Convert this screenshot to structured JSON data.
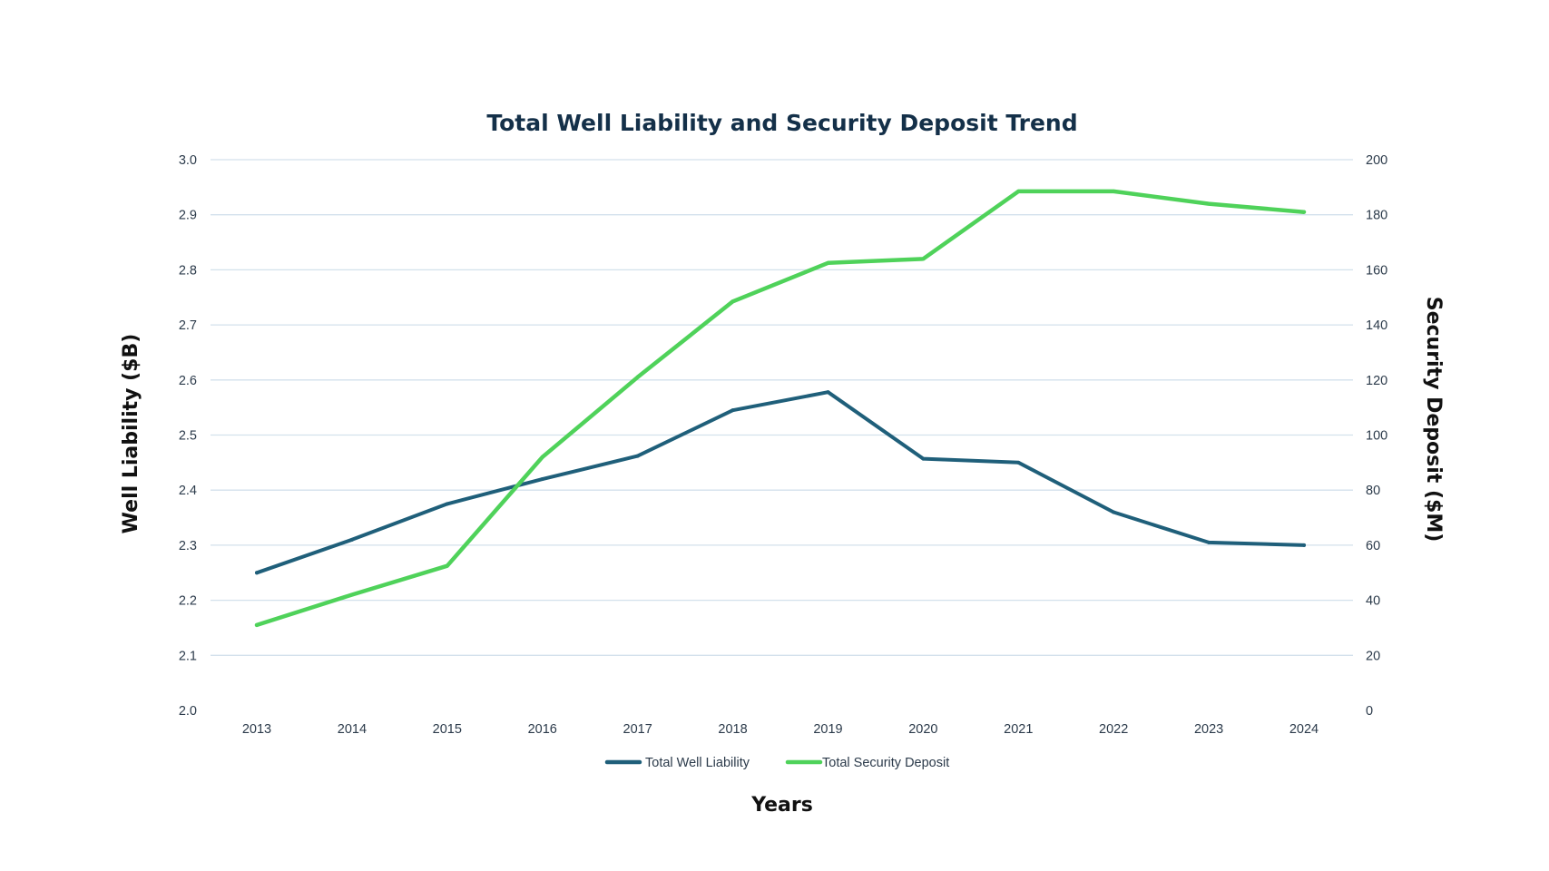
{
  "chart_data": {
    "type": "line",
    "title": "Total Well Liability and Security Deposit Trend",
    "xlabel": "Years",
    "ylabel_left": "Well Liability ($B)",
    "ylabel_right": "Security Deposit ($M)",
    "categories": [
      "2013",
      "2014",
      "2015",
      "2016",
      "2017",
      "2018",
      "2019",
      "2020",
      "2021",
      "2022",
      "2023",
      "2024"
    ],
    "y_left": {
      "lim": [
        2.0,
        3.0
      ],
      "ticks": [
        "2.0",
        "2.1",
        "2.2",
        "2.3",
        "2.4",
        "2.5",
        "2.6",
        "2.7",
        "2.8",
        "2.9",
        "3.0"
      ]
    },
    "y_right": {
      "lim": [
        0,
        200
      ],
      "ticks": [
        "0",
        "20",
        "40",
        "60",
        "80",
        "100",
        "120",
        "140",
        "160",
        "180",
        "200"
      ]
    },
    "series": [
      {
        "name": "Total Well Liability",
        "axis": "left",
        "color": "#1f5f7a",
        "values": [
          2.25,
          2.31,
          2.375,
          2.42,
          2.462,
          2.545,
          2.578,
          2.457,
          2.45,
          2.36,
          2.305,
          2.3
        ]
      },
      {
        "name": "Total Security Deposit",
        "axis": "right",
        "color": "#4fd25a",
        "values": [
          31,
          42,
          52.5,
          92,
          121,
          148.5,
          162.5,
          164,
          188.5,
          188.5,
          184,
          181
        ]
      }
    ],
    "grid": true,
    "legend_position": "bottom"
  }
}
